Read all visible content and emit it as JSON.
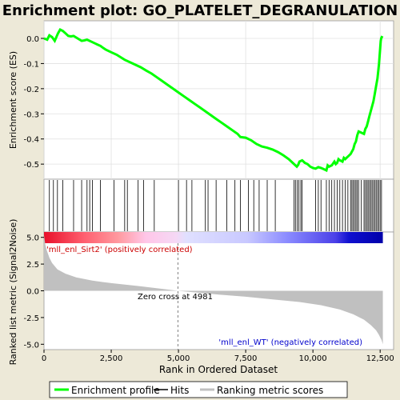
{
  "chart_data": {
    "type": "line",
    "title": "Enrichment plot: GO_PLATELET_DEGRANULATION",
    "top_panel": {
      "ylabel": "Enrichment score (ES)",
      "ylim": [
        -0.56,
        0.07
      ],
      "yticks": [
        0.0,
        -0.1,
        -0.2,
        -0.3,
        -0.4,
        -0.5
      ],
      "ytick_labels": [
        "0.0",
        "-0.1",
        "-0.2",
        "-0.3",
        "-0.4",
        "-0.5"
      ],
      "line_color": "#00ff00",
      "series": [
        {
          "name": "Enrichment profile",
          "x": [
            0,
            120,
            200,
            300,
            400,
            520,
            600,
            700,
            800,
            900,
            1000,
            1100,
            1250,
            1400,
            1500,
            1600,
            1700,
            1800,
            1900,
            2000,
            2100,
            2200,
            2300,
            2500,
            2700,
            3000,
            3300,
            3600,
            3800,
            4000,
            4200,
            4400,
            4600,
            4800,
            5000,
            5200,
            5400,
            5600,
            5800,
            6000,
            6200,
            6400,
            6600,
            6800,
            7000,
            7200,
            7300,
            7500,
            7700,
            7900,
            8100,
            8300,
            8500,
            8700,
            8900,
            9100,
            9300,
            9400,
            9450,
            9500,
            9600,
            9700,
            9800,
            9900,
            10000,
            10100,
            10200,
            10300,
            10400,
            10500,
            10550,
            10600,
            10700,
            10800,
            10850,
            10900,
            10950,
            11000,
            11100,
            11150,
            11200,
            11300,
            11400,
            11450,
            11500,
            11550,
            11600,
            11650,
            11700,
            11800,
            11900,
            11950,
            12000,
            12050,
            12100,
            12150,
            12200,
            12250,
            12300,
            12350,
            12400,
            12430,
            12460,
            12480,
            12500,
            12520,
            12540,
            12560,
            12600
          ],
          "y": [
            0.0,
            -0.005,
            0.012,
            0.005,
            -0.01,
            0.02,
            0.035,
            0.03,
            0.02,
            0.01,
            0.008,
            0.01,
            0.0,
            -0.01,
            -0.008,
            -0.005,
            -0.01,
            -0.015,
            -0.02,
            -0.025,
            -0.03,
            -0.038,
            -0.045,
            -0.055,
            -0.065,
            -0.085,
            -0.1,
            -0.115,
            -0.128,
            -0.14,
            -0.155,
            -0.17,
            -0.185,
            -0.2,
            -0.215,
            -0.23,
            -0.245,
            -0.26,
            -0.275,
            -0.29,
            -0.305,
            -0.32,
            -0.335,
            -0.35,
            -0.365,
            -0.38,
            -0.392,
            -0.395,
            -0.405,
            -0.42,
            -0.43,
            -0.435,
            -0.442,
            -0.452,
            -0.465,
            -0.48,
            -0.5,
            -0.51,
            -0.503,
            -0.49,
            -0.485,
            -0.495,
            -0.5,
            -0.51,
            -0.515,
            -0.518,
            -0.512,
            -0.515,
            -0.52,
            -0.525,
            -0.505,
            -0.51,
            -0.505,
            -0.49,
            -0.5,
            -0.495,
            -0.48,
            -0.485,
            -0.49,
            -0.475,
            -0.48,
            -0.47,
            -0.46,
            -0.45,
            -0.44,
            -0.42,
            -0.41,
            -0.385,
            -0.37,
            -0.375,
            -0.38,
            -0.36,
            -0.35,
            -0.33,
            -0.31,
            -0.29,
            -0.27,
            -0.25,
            -0.22,
            -0.19,
            -0.16,
            -0.13,
            -0.1,
            -0.07,
            -0.04,
            -0.01,
            0.0,
            0.005,
            0.003
          ]
        }
      ]
    },
    "hits": [
      200,
      350,
      500,
      700,
      1100,
      1400,
      1600,
      1700,
      1800,
      2100,
      2600,
      3000,
      3100,
      3500,
      3700,
      4100,
      5000,
      5300,
      5500,
      6000,
      6100,
      6400,
      6800,
      7100,
      7300,
      7600,
      7800,
      8000,
      8300,
      8600,
      9300,
      9350,
      9420,
      9480,
      9550,
      9600,
      10100,
      10200,
      10300,
      10500,
      10600,
      10700,
      10800,
      10900,
      11000,
      11100,
      11200,
      11300,
      11400,
      11450,
      11500,
      11550,
      11600,
      11650,
      11700,
      11800,
      11900,
      11950,
      12000,
      12050,
      12100,
      12150,
      12200,
      12250,
      12300,
      12350,
      12400,
      12450,
      12500,
      12550
    ],
    "bottom_panel": {
      "ylabel": "Ranked list metric (Signal2Noise)",
      "xlabel": "Rank in Ordered Dataset",
      "ylim": [
        -5.5,
        5.5
      ],
      "yticks": [
        5.0,
        2.5,
        0.0,
        -2.5,
        -5.0
      ],
      "ytick_labels": [
        "5.0",
        "2.5",
        "0.0",
        "-2.5",
        "-5.0"
      ],
      "xlim": [
        0,
        13000
      ],
      "xticks": [
        0,
        2500,
        5000,
        7500,
        10000,
        12500
      ],
      "xtick_labels": [
        "0",
        "2,500",
        "5,000",
        "7,500",
        "10,000",
        "12,500"
      ],
      "fill_color": "#c0c0c0",
      "metric_profile": {
        "x": [
          0,
          50,
          100,
          200,
          300,
          500,
          800,
          1200,
          1800,
          2500,
          3500,
          4500,
          4981,
          5500,
          6500,
          7500,
          8500,
          9500,
          10300,
          11000,
          11500,
          11900,
          12150,
          12350,
          12450,
          12550,
          12600
        ],
        "y": [
          5.2,
          4.3,
          3.8,
          3.1,
          2.6,
          2.0,
          1.6,
          1.25,
          0.95,
          0.72,
          0.45,
          0.15,
          0.0,
          -0.12,
          -0.35,
          -0.55,
          -0.8,
          -1.05,
          -1.35,
          -1.75,
          -2.2,
          -2.7,
          -3.2,
          -3.7,
          -4.1,
          -4.6,
          -5.0
        ]
      },
      "positive_label": "'mll_enl_Sirt2' (positively correlated)",
      "negative_label": "'mll_enl_WT' (negatively correlated)",
      "zero_cross_label": "Zero cross at 4981",
      "zero_cross": 4981,
      "positive_color": "#cc0000",
      "negative_color": "#0000cc"
    },
    "legend": {
      "placement": "bottom",
      "items": [
        {
          "label": "Enrichment profile",
          "color": "#00ff00"
        },
        {
          "label": "Hits",
          "color": "#000000"
        },
        {
          "label": "Ranking metric scores",
          "color": "#c0c0c0"
        }
      ]
    }
  }
}
